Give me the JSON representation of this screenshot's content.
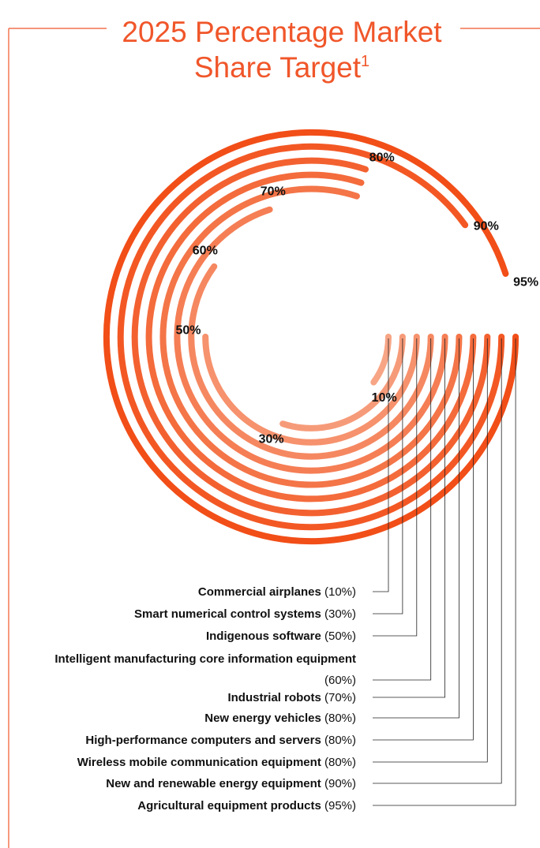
{
  "title": {
    "line1": "2025 Percentage Market",
    "line2": "Share Target",
    "footnote_marker": "1"
  },
  "colors": {
    "title": "#f0562a",
    "frame": "#f0562a",
    "leader": "#222222",
    "ring_light": "#f7a585",
    "ring_dark": "#f24e18"
  },
  "chart_data": {
    "type": "radial-bar",
    "title": "2025 Percentage Market Share Target",
    "unit": "%",
    "series": [
      {
        "name": "Commercial airplanes",
        "value": 10,
        "label": "(10%)"
      },
      {
        "name": "Smart numerical control systems",
        "value": 30,
        "label": "(30%)"
      },
      {
        "name": "Indigenous software",
        "value": 50,
        "label": "(50%)"
      },
      {
        "name": "Intelligent manufacturing core information equipment",
        "value": 60,
        "label": "(60%)"
      },
      {
        "name": "Industrial robots",
        "value": 70,
        "label": "(70%)"
      },
      {
        "name": "New energy vehicles",
        "value": 80,
        "label": "(80%)"
      },
      {
        "name": "High-performance computers and servers",
        "value": 80,
        "label": "(80%)"
      },
      {
        "name": "Wireless mobile communication equipment",
        "value": 80,
        "label": "(80%)"
      },
      {
        "name": "New and renewable energy equipment",
        "value": 90,
        "label": "(90%)"
      },
      {
        "name": "Agricultural equipment products",
        "value": 95,
        "label": "(95%)"
      }
    ],
    "arc_labels": [
      "10%",
      "30%",
      "50%",
      "60%",
      "70%",
      "80%",
      "90%",
      "95%"
    ]
  }
}
